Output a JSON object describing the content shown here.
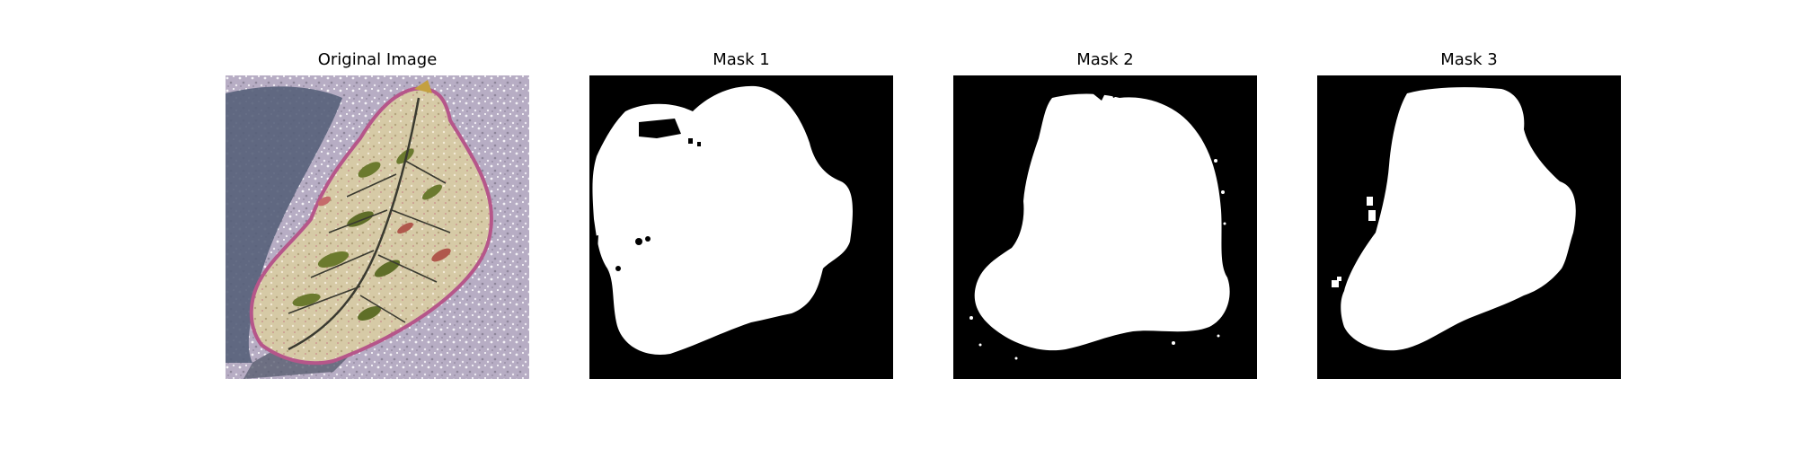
{
  "figure": {
    "panels": [
      {
        "title": "Original Image"
      },
      {
        "title": "Mask 1"
      },
      {
        "title": "Mask 2"
      },
      {
        "title": "Mask 3"
      }
    ]
  },
  "colors": {
    "background": "#ffffff",
    "mask_background": "#000000",
    "mask_foreground": "#ffffff",
    "ground": "#b8b0c4",
    "shadow": "#4d5566",
    "leaf_base": "#d8ccaa",
    "leaf_rim": "#b85a8a",
    "leaf_spots": "#6b7a2e",
    "leaf_veins": "#3a3a30"
  }
}
